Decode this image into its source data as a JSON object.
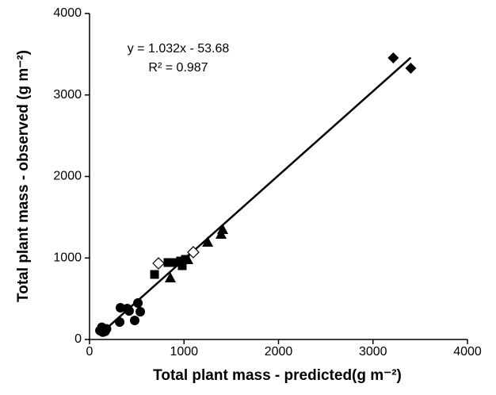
{
  "chart_data": {
    "type": "scatter",
    "xlabel": "Total plant mass - predicted(g m⁻²)",
    "ylabel": "Total plant mass - observed (g m⁻²)",
    "annotations": [
      "y = 1.032x - 53.68",
      "R² = 0.987"
    ],
    "xlim": [
      0,
      4000
    ],
    "xticks": [
      0,
      1000,
      2000,
      3000,
      4000
    ],
    "ylim": [
      0,
      4000
    ],
    "yticks": [
      0,
      1000,
      2000,
      3000,
      4000
    ],
    "trendline": true,
    "series": [
      {
        "marker": "circle",
        "color": "#000000",
        "x": [
          110,
          130,
          150,
          165,
          180,
          140,
          327,
          319,
          419,
          478,
          512,
          537,
          400
        ],
        "values": [
          110,
          150,
          120,
          100,
          130,
          90,
          389,
          214,
          350,
          234,
          448,
          341,
          380
        ]
      },
      {
        "marker": "square",
        "color": "#000000",
        "x": [
          688,
          830,
          880,
          964,
          981,
          1015
        ],
        "values": [
          798,
          944,
          944,
          963,
          905,
          983
        ]
      },
      {
        "marker": "triangle",
        "color": "#000000",
        "x": [
          855,
          1040,
          1250,
          1392,
          1409
        ],
        "values": [
          759,
          983,
          1197,
          1294,
          1353
        ]
      },
      {
        "marker": "diamond-open",
        "color": "#000000",
        "x": [
          730,
          1098
        ],
        "values": [
          934,
          1071
        ]
      },
      {
        "marker": "diamond",
        "color": "#000000",
        "x": [
          3215,
          3400
        ],
        "values": [
          3455,
          3328
        ]
      }
    ]
  }
}
